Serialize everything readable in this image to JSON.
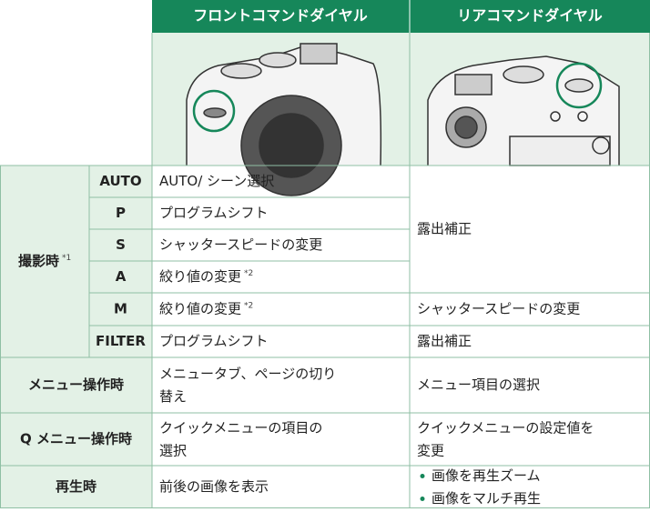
{
  "header": {
    "front": "フロントコマンドダイヤル",
    "rear": "リアコマンドダイヤル"
  },
  "shooting": {
    "label": "撮影時",
    "note": "*1",
    "modes": [
      {
        "mode": "AUTO",
        "front": "AUTO/ シーン選択"
      },
      {
        "mode": "P",
        "front": "プログラムシフト"
      },
      {
        "mode": "S",
        "front": "シャッタースピードの変更"
      },
      {
        "mode": "A",
        "front": "絞り値の変更",
        "note": "*2"
      },
      {
        "mode": "M",
        "front": "絞り値の変更",
        "note": "*2",
        "rear": "シャッタースピードの変更"
      },
      {
        "mode": "FILTER",
        "front": "プログラムシフト",
        "rear": "露出補正"
      }
    ],
    "rear_shared": "露出補正"
  },
  "menu": {
    "label": "メニュー操作時",
    "front": [
      "メニュータブ、ページの切り",
      "替え"
    ],
    "rear": "メニュー項目の選択"
  },
  "qmenu": {
    "label": "Q メニュー操作時",
    "front": [
      "クイックメニューの項目の",
      "選択"
    ],
    "rear": [
      "クイックメニューの設定値を",
      "変更"
    ]
  },
  "playback": {
    "label": "再生時",
    "front": "前後の画像を表示",
    "rear": [
      "画像を再生ズーム",
      "画像をマルチ再生"
    ]
  }
}
